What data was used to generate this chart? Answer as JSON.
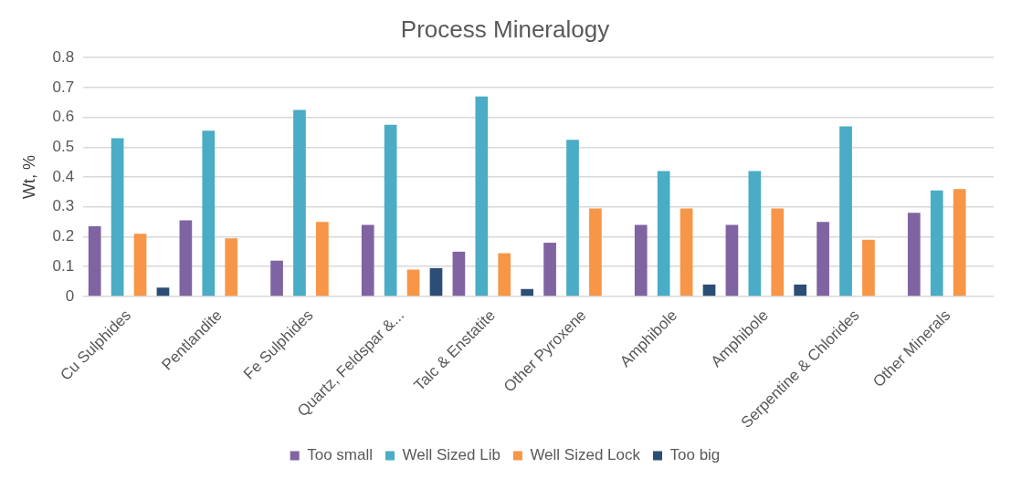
{
  "chart_data": {
    "type": "bar",
    "title": "Process Mineralogy",
    "ylabel": "Wt, %",
    "categories": [
      "Cu Sulphides",
      "Pentlandite",
      "Fe Sulphides",
      "Quartz, Feldspar &...",
      "Talc & Enstatite",
      "Other Pyroxene",
      "Amphibole",
      "Amphibole",
      "Serpentine & Chlorides",
      "Other Minerals"
    ],
    "series": [
      {
        "name": "Too small",
        "color": "#8064a2",
        "values": [
          0.235,
          0.255,
          0.12,
          0.24,
          0.15,
          0.18,
          0.24,
          0.24,
          0.25,
          0.28
        ]
      },
      {
        "name": "Well Sized Lib",
        "color": "#4bacc6",
        "values": [
          0.53,
          0.555,
          0.625,
          0.575,
          0.67,
          0.525,
          0.42,
          0.42,
          0.57,
          0.355
        ]
      },
      {
        "name": "Well Sized Lock",
        "color": "#f79646",
        "values": [
          0.21,
          0.195,
          0.25,
          0.09,
          0.145,
          0.295,
          0.295,
          0.295,
          0.19,
          0.36
        ]
      },
      {
        "name": "Too big",
        "color": "#2c4d75",
        "values": [
          0.03,
          null,
          null,
          0.095,
          0.025,
          null,
          0.04,
          0.04,
          null,
          null
        ]
      }
    ],
    "ylim": [
      0,
      0.8
    ],
    "yticks": [
      0,
      0.1,
      0.2,
      0.3,
      0.4,
      0.5,
      0.6,
      0.7,
      0.8
    ],
    "grid": "y",
    "legend": "bottom"
  }
}
